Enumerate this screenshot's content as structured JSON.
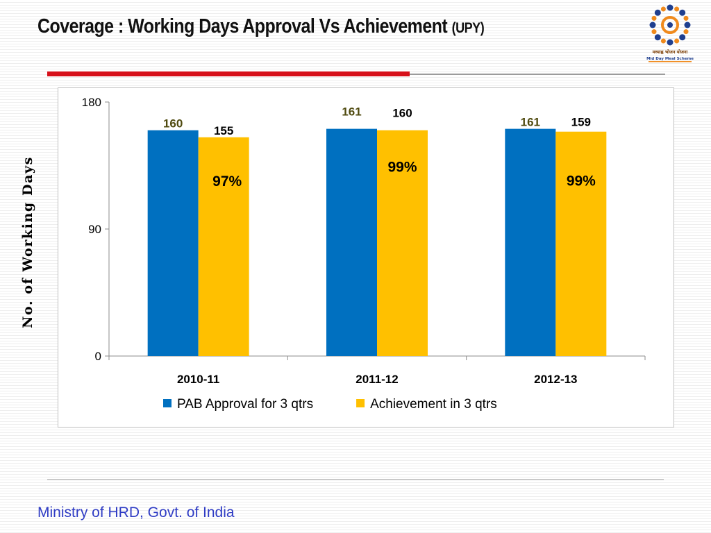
{
  "slide": {
    "title": "Coverage : Working Days Approval Vs Achievement",
    "title_suffix": "(UPY)",
    "footer": "Ministry of HRD, Govt. of India",
    "logo_text_hindi": "मध्याह्न भोजन योजना",
    "logo_text_english": "Mid Day Meal Scheme",
    "colors": {
      "accent_red": "#d7111b",
      "footer_blue": "#2f3cc4",
      "logo_orange": "#f08a1c",
      "logo_blue": "#1f3f8f"
    }
  },
  "chart_data": {
    "type": "bar",
    "title": "",
    "xlabel": "",
    "ylabel": "No. of Working Days",
    "ylim": [
      0,
      180
    ],
    "yticks": [
      0,
      90,
      180
    ],
    "categories": [
      "2010-11",
      "2011-12",
      "2012-13"
    ],
    "series": [
      {
        "name": "PAB Approval for 3 qtrs",
        "values": [
          160,
          161,
          161
        ],
        "color": "#0070c0",
        "label_color": "#4f4a0f"
      },
      {
        "name": "Achievement in 3 qtrs",
        "values": [
          155,
          160,
          159
        ],
        "color": "#ffc000",
        "label_color": "#000000"
      }
    ],
    "annotations": [
      "97%",
      "99%",
      "99%"
    ],
    "legend": "bottom",
    "grid": false
  }
}
